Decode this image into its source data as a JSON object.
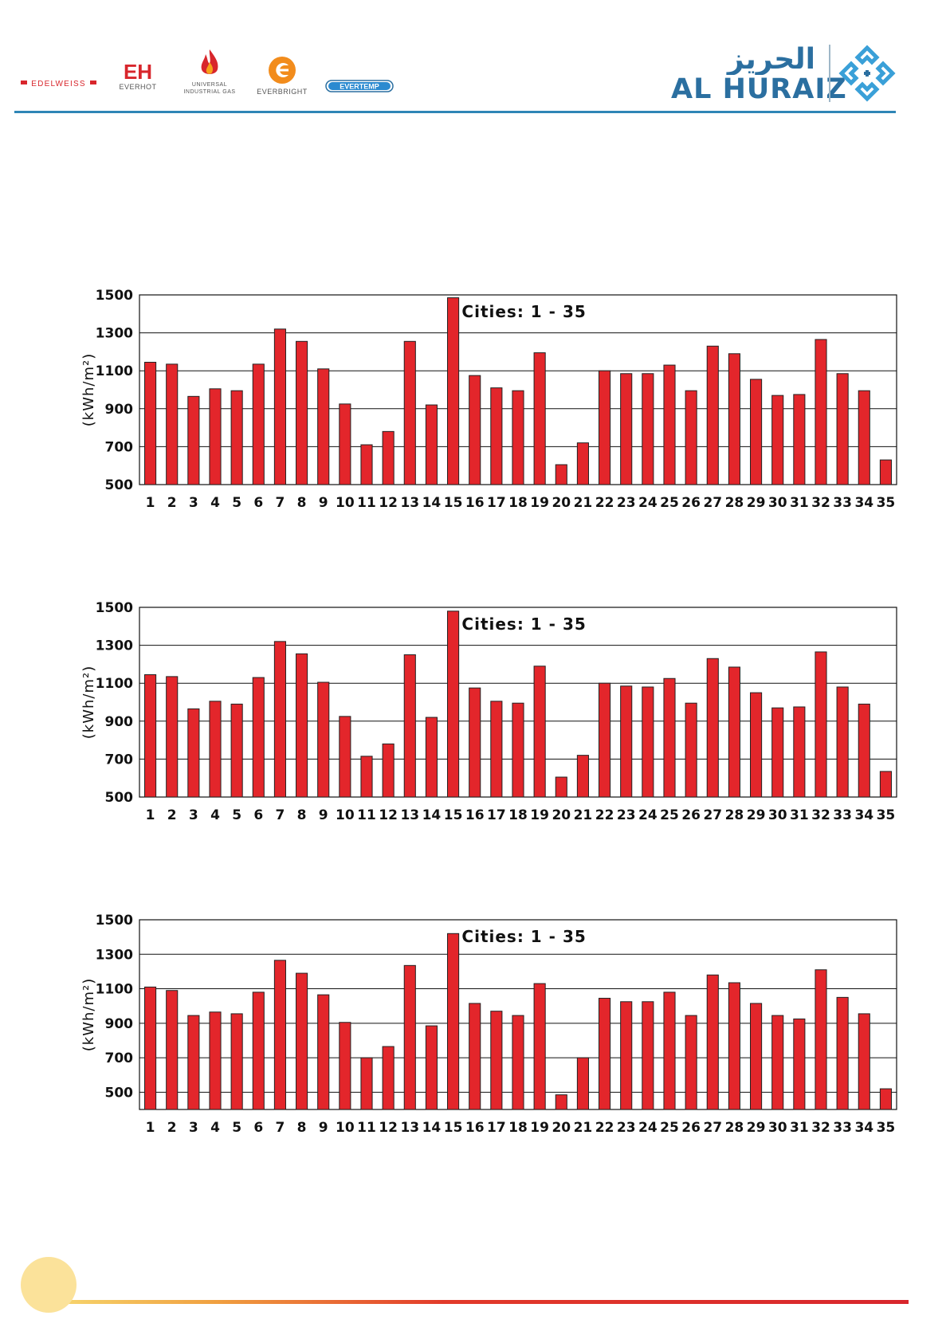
{
  "header": {
    "brand_logos": [
      {
        "name": "EDELWEISS",
        "label": "EDELWEISS"
      },
      {
        "name": "EVERHOT",
        "label": "EVERHOT",
        "mark": "EH"
      },
      {
        "name": "UNIVERSAL INDUSTRIAL GAS",
        "label": "UNIVERSAL INDUSTRIAL GAS"
      },
      {
        "name": "EVERBRIGHT",
        "label": "EVERBRIGHT"
      },
      {
        "name": "EVERTEMP",
        "label": "EVERTEMP"
      }
    ],
    "company": {
      "name_latin": "AL HURAIZ",
      "name_arabic": "الحريز"
    },
    "colors": {
      "brand_blue": "#2b6fa0",
      "rule_blue": "#2f86b6"
    }
  },
  "chart_data": [
    {
      "type": "bar",
      "annotation": "Cities: 1 - 35",
      "ylabel": "(kWh/m²)",
      "xlabel": "",
      "ylim": [
        500,
        1500
      ],
      "yticks": [
        500,
        700,
        900,
        1100,
        1300,
        1500
      ],
      "grid": true,
      "bar_color": "#e3262b",
      "categories": [
        "1",
        "2",
        "3",
        "4",
        "5",
        "6",
        "7",
        "8",
        "9",
        "10",
        "11",
        "12",
        "13",
        "14",
        "15",
        "16",
        "17",
        "18",
        "19",
        "20",
        "21",
        "22",
        "23",
        "24",
        "25",
        "26",
        "27",
        "28",
        "29",
        "30",
        "31",
        "32",
        "33",
        "34",
        "35"
      ],
      "values": [
        1145,
        1135,
        965,
        1005,
        995,
        1135,
        1320,
        1255,
        1110,
        925,
        710,
        780,
        1255,
        920,
        1485,
        1075,
        1010,
        995,
        1195,
        605,
        720,
        1100,
        1085,
        1085,
        1130,
        995,
        1230,
        1190,
        1055,
        970,
        975,
        1265,
        1085,
        995,
        630
      ]
    },
    {
      "type": "bar",
      "annotation": "Cities: 1 - 35",
      "ylabel": "(kWh/m²)",
      "xlabel": "",
      "ylim": [
        500,
        1500
      ],
      "yticks": [
        500,
        700,
        900,
        1100,
        1300,
        1500
      ],
      "grid": true,
      "bar_color": "#e3262b",
      "categories": [
        "1",
        "2",
        "3",
        "4",
        "5",
        "6",
        "7",
        "8",
        "9",
        "10",
        "11",
        "12",
        "13",
        "14",
        "15",
        "16",
        "17",
        "18",
        "19",
        "20",
        "21",
        "22",
        "23",
        "24",
        "25",
        "26",
        "27",
        "28",
        "29",
        "30",
        "31",
        "32",
        "33",
        "34",
        "35"
      ],
      "values": [
        1145,
        1135,
        965,
        1005,
        990,
        1130,
        1320,
        1255,
        1105,
        925,
        715,
        780,
        1250,
        920,
        1480,
        1075,
        1005,
        995,
        1190,
        605,
        720,
        1100,
        1085,
        1080,
        1125,
        995,
        1230,
        1185,
        1050,
        970,
        975,
        1265,
        1080,
        990,
        635
      ]
    },
    {
      "type": "bar",
      "annotation": "Cities: 1 - 35",
      "ylabel": "(kWh/m²)",
      "xlabel": "",
      "ylim": [
        400,
        1500
      ],
      "yticks": [
        500,
        700,
        900,
        1100,
        1300,
        1500
      ],
      "grid": true,
      "bar_color": "#e3262b",
      "categories": [
        "1",
        "2",
        "3",
        "4",
        "5",
        "6",
        "7",
        "8",
        "9",
        "10",
        "11",
        "12",
        "13",
        "14",
        "15",
        "16",
        "17",
        "18",
        "19",
        "20",
        "21",
        "22",
        "23",
        "24",
        "25",
        "26",
        "27",
        "28",
        "29",
        "30",
        "31",
        "32",
        "33",
        "34",
        "35"
      ],
      "values": [
        1110,
        1090,
        945,
        965,
        955,
        1080,
        1265,
        1190,
        1065,
        905,
        700,
        765,
        1235,
        885,
        1420,
        1015,
        970,
        945,
        1130,
        485,
        700,
        1045,
        1025,
        1025,
        1080,
        945,
        1180,
        1135,
        1015,
        945,
        925,
        1210,
        1050,
        955,
        520
      ]
    }
  ],
  "footer": {
    "circle_color": "#fbe29a",
    "line_color": "#e3262b"
  }
}
